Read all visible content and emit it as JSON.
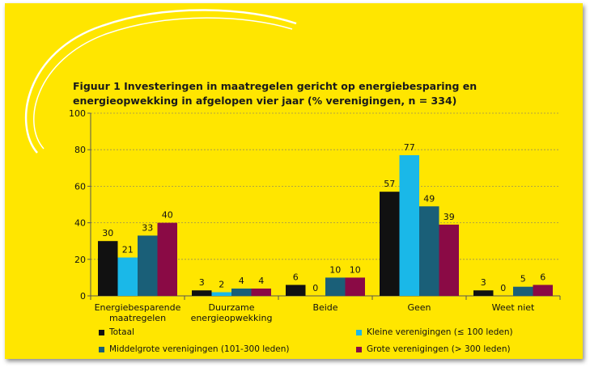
{
  "page": {
    "background": "#ffe600"
  },
  "chart_data": {
    "type": "bar",
    "title": "Figuur 1 Investeringen in maatregelen gericht op energiebesparing en energieopwekking in afgelopen vier jaar (% verenigingen, n = 334)",
    "categories": [
      "Energiebesparende maatregelen",
      "Duurzame energieopwekking",
      "Beide",
      "Geen",
      "Weet niet"
    ],
    "series": [
      {
        "name": "Totaal",
        "color": "#111111",
        "values": [
          30,
          3,
          6,
          57,
          3
        ]
      },
      {
        "name": "Kleine verenigingen (≤ 100 leden)",
        "color": "#1ab8e8",
        "values": [
          21,
          2,
          0,
          77,
          0
        ]
      },
      {
        "name": "Middelgrote verenigingen (101-300 leden)",
        "color": "#1a5f78",
        "values": [
          33,
          4,
          10,
          49,
          5
        ]
      },
      {
        "name": "Grote verenigingen (> 300 leden)",
        "color": "#8a0a45",
        "values": [
          40,
          4,
          10,
          39,
          6
        ]
      }
    ],
    "ylim": [
      0,
      100
    ],
    "yticks": [
      0,
      20,
      40,
      60,
      80,
      100
    ],
    "grid": true,
    "legend_position": "bottom",
    "xlabel": "",
    "ylabel": ""
  }
}
